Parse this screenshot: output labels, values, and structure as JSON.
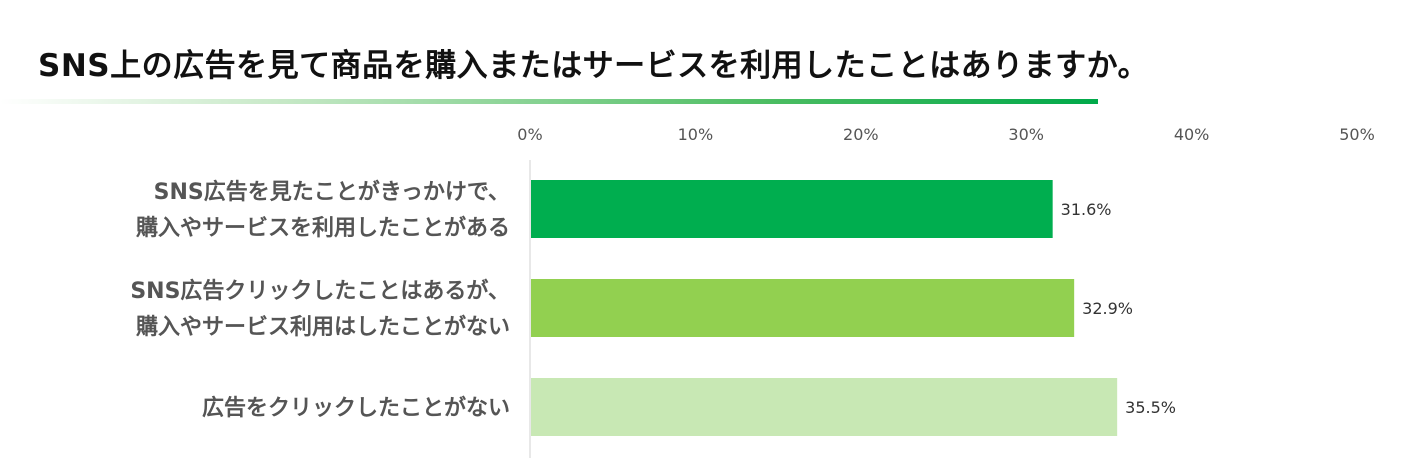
{
  "header": {
    "title": "SNS上の広告を見て商品を購入またはサービスを利用したことはありますか。"
  },
  "colors": {
    "title_rule": "#00a94a",
    "axis": "#d0d0d0"
  },
  "chart_data": {
    "type": "bar",
    "orientation": "horizontal",
    "title": "SNS上の広告を見て商品を購入またはサービスを利用したことはありますか。",
    "xlabel": "",
    "ylabel": "",
    "xlim": [
      0,
      50
    ],
    "ticks": [
      0,
      10,
      20,
      30,
      40,
      50
    ],
    "tick_labels": [
      "0%",
      "10%",
      "20%",
      "30%",
      "40%",
      "50%"
    ],
    "grid": false,
    "categories": [
      [
        "SNS広告を見たことがきっかけで、",
        "購入やサービスを利用したことがある"
      ],
      [
        "SNS広告クリックしたことはあるが、",
        "購入やサービス利用はしたことがない"
      ],
      [
        "広告をクリックしたことがない"
      ]
    ],
    "values": [
      31.6,
      32.9,
      35.5
    ],
    "value_labels": [
      "31.6%",
      "32.9%",
      "35.5%"
    ],
    "bar_colors": [
      "#00ae4f",
      "#92d050",
      "#c8e8b4"
    ]
  }
}
